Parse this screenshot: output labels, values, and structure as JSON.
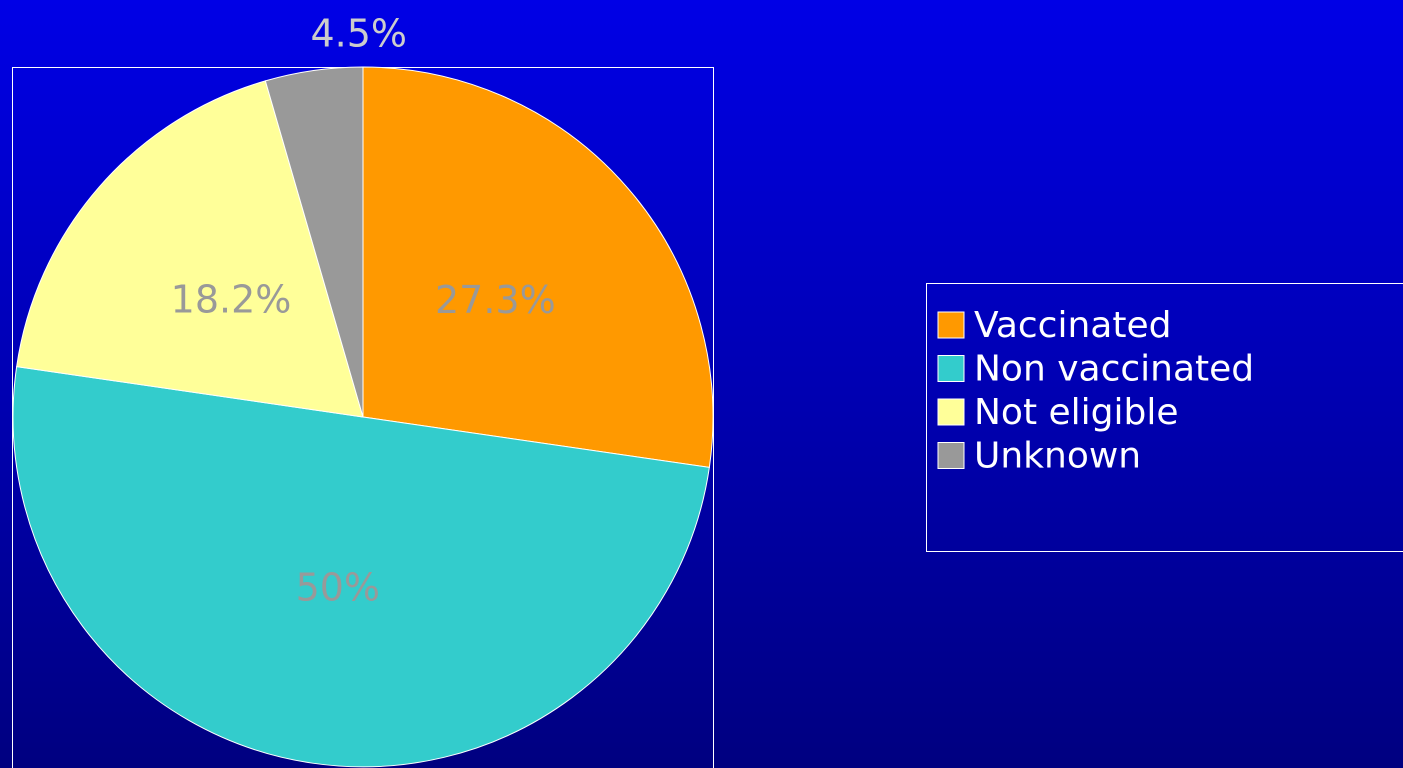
{
  "chart_data": {
    "type": "pie",
    "categories": [
      "Vaccinated",
      "Non vaccinated",
      "Not eligible",
      "Unknown"
    ],
    "values": [
      27.3,
      50,
      18.2,
      4.5
    ],
    "value_labels": [
      "27.3%",
      "50%",
      "18.2%",
      "4.5%"
    ],
    "colors": [
      "#ff9900",
      "#33cccc",
      "#ffff99",
      "#999999"
    ],
    "legend": "right"
  }
}
